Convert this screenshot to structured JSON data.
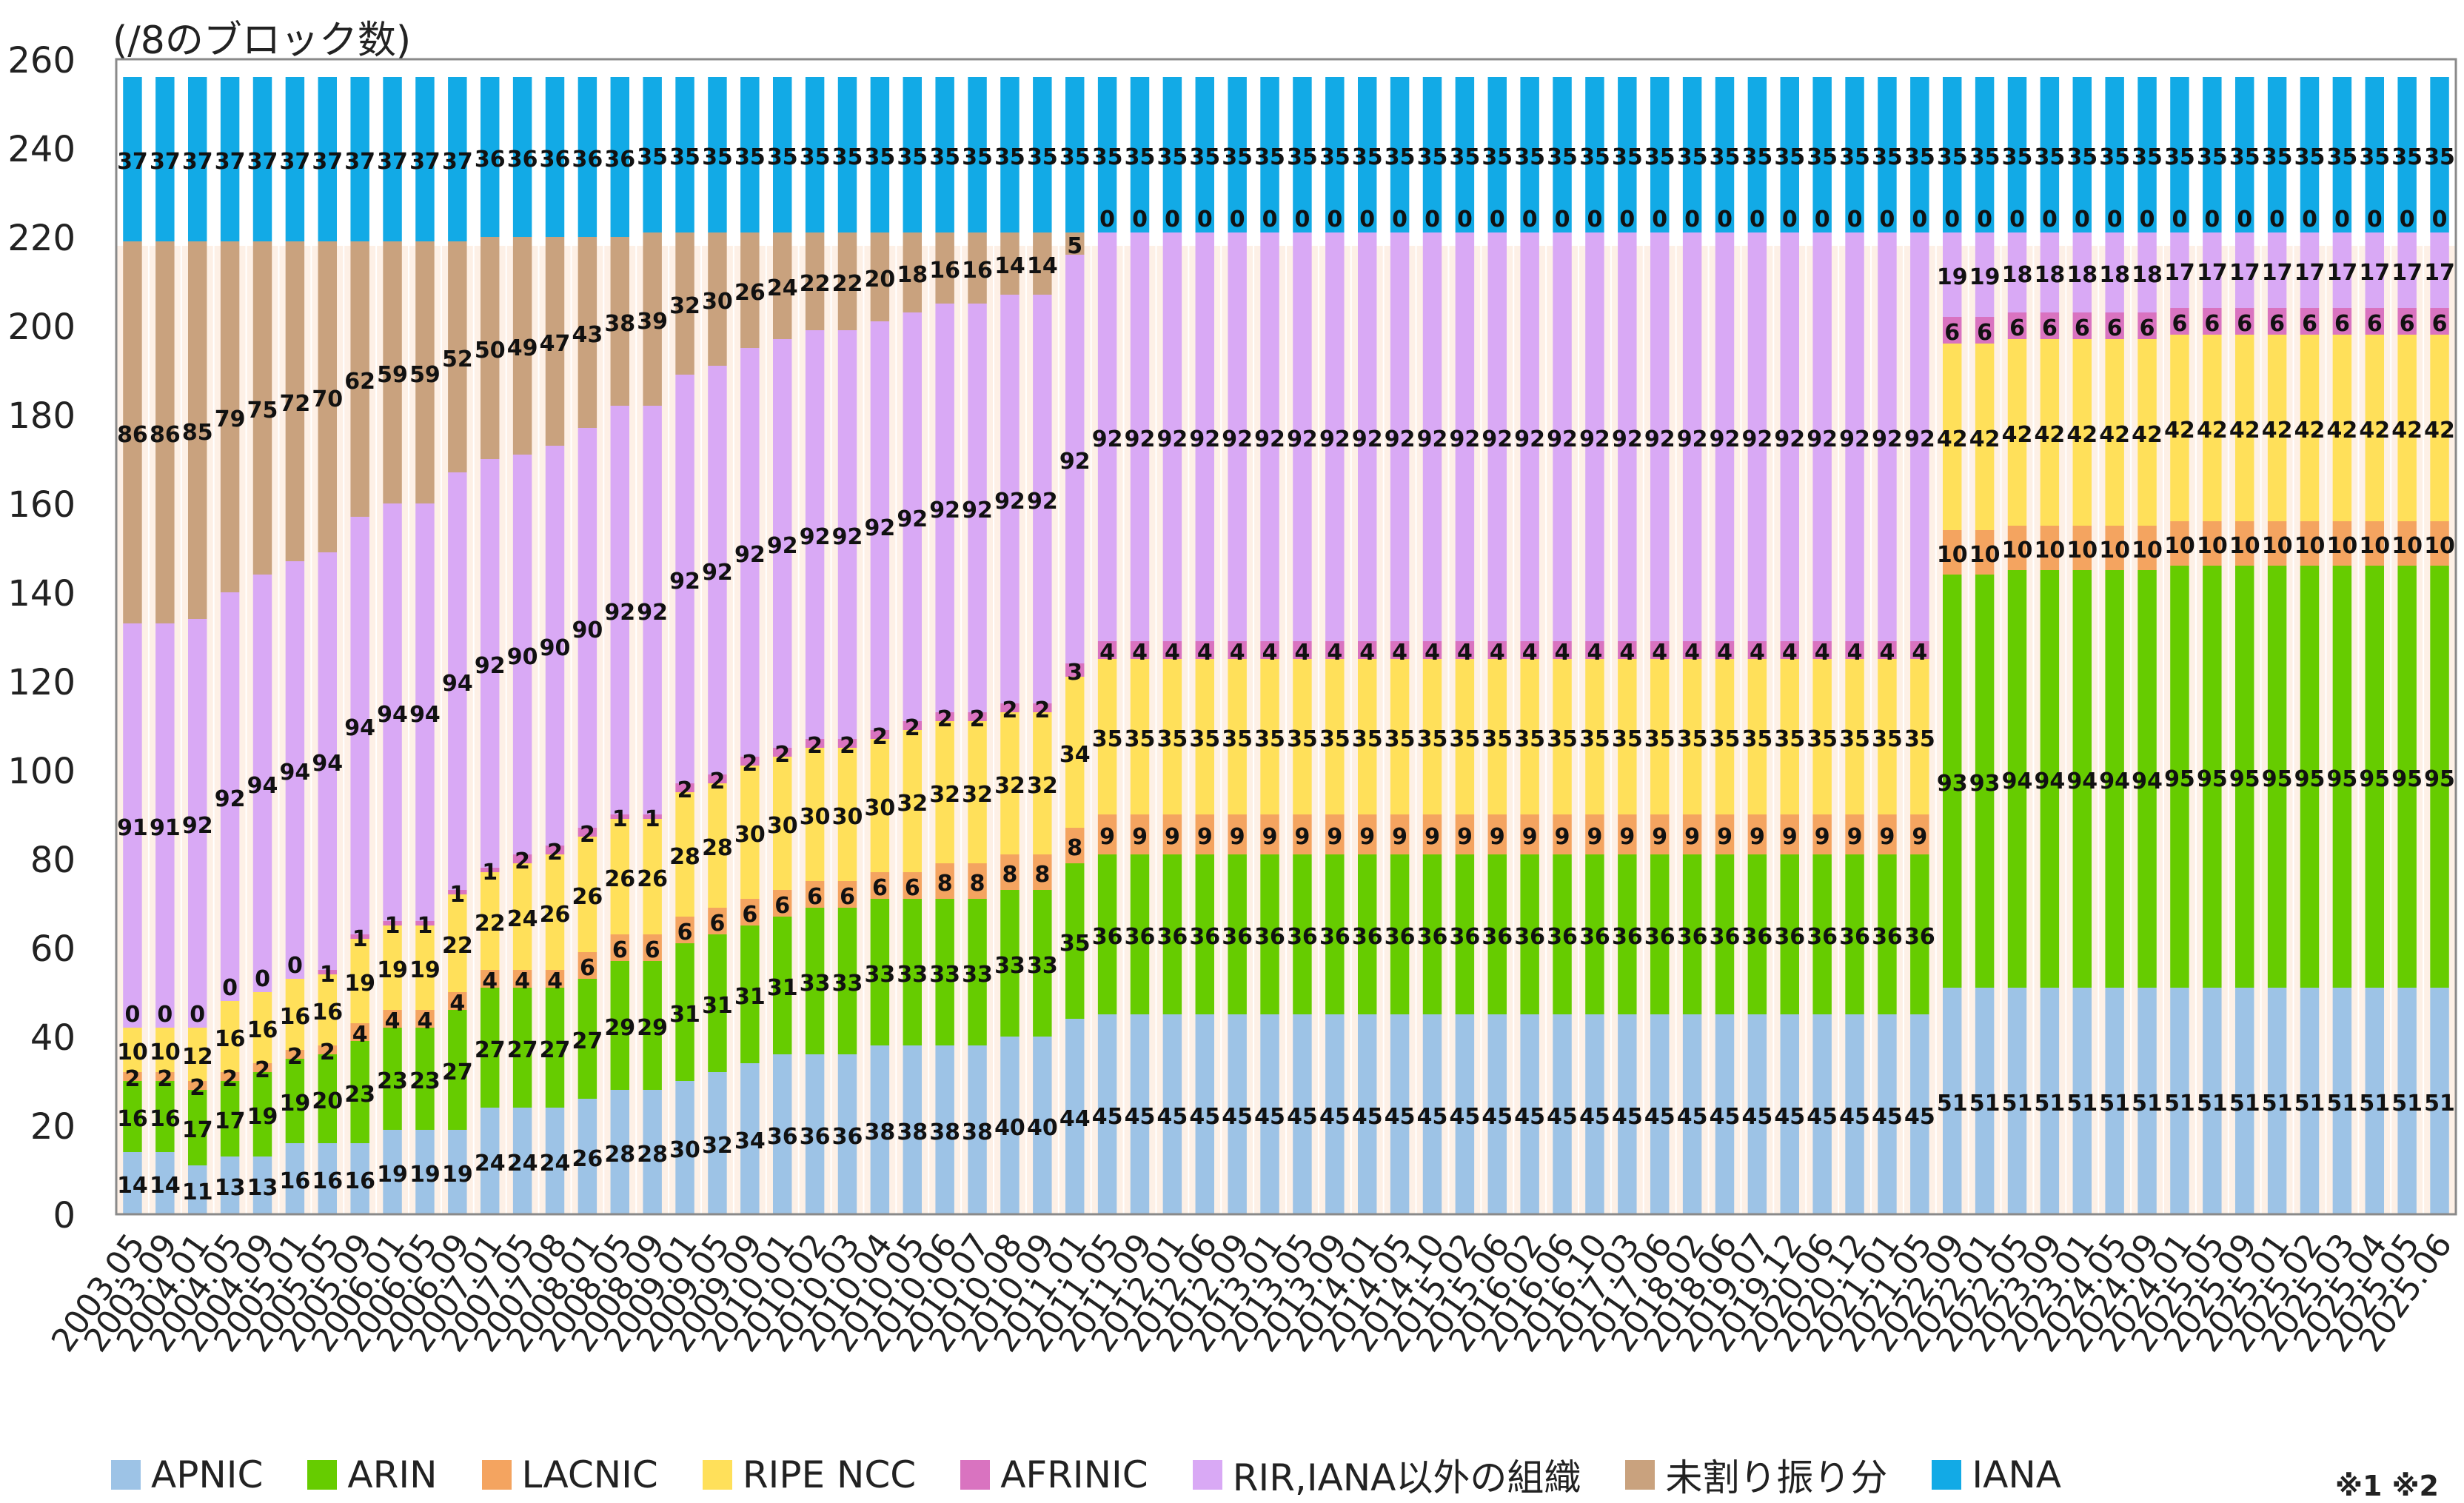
{
  "chart_data": {
    "type": "bar",
    "stacked": true,
    "ylabel": "(/8のブロック数)",
    "ylim": [
      0,
      260
    ],
    "yticks": [
      0,
      20,
      40,
      60,
      80,
      100,
      120,
      140,
      160,
      180,
      200,
      220,
      240,
      260
    ],
    "categories": [
      "2003.05",
      "2003.09",
      "2004.01",
      "2004.05",
      "2004.09",
      "2005.01",
      "2005.05",
      "2005.09",
      "2006.01",
      "2006.05",
      "2006.09",
      "2007.01",
      "2007.05",
      "2007.08",
      "2008.01",
      "2008.05",
      "2008.09",
      "2009.01",
      "2009.05",
      "2009.09",
      "2010.01",
      "2010.02",
      "2010.03",
      "2010.04",
      "2010.05",
      "2010.06",
      "2010.07",
      "2010.08",
      "2010.09",
      "2011.01",
      "2011.05",
      "2011.09",
      "2012.01",
      "2012.06",
      "2012.09",
      "2013.01",
      "2013.05",
      "2013.09",
      "2014.01",
      "2014.05",
      "2014.10",
      "2015.02",
      "2015.06",
      "2016.02",
      "2016.06",
      "2016.10",
      "2017.03",
      "2017.06",
      "2018.02",
      "2018.06",
      "2019.07",
      "2019.12",
      "2020.06",
      "2020.12",
      "2021.01",
      "2021.05",
      "2022.09",
      "2022.01",
      "2022.05",
      "2023.09",
      "2023.01",
      "2024.05",
      "2024.09",
      "2024.01",
      "2025.05",
      "2025.09",
      "2025.01",
      "2025.02",
      "2025.03",
      "2025.04",
      "2025.05",
      "2025.06"
    ],
    "series": [
      {
        "name": "APNIC",
        "color": "#9DC3E6",
        "values": [
          14,
          14,
          11,
          13,
          13,
          16,
          16,
          16,
          19,
          19,
          19,
          24,
          24,
          24,
          26,
          28,
          28,
          30,
          32,
          34,
          36,
          36,
          36,
          38,
          38,
          38,
          38,
          40,
          40,
          44,
          45,
          45,
          45,
          45,
          45,
          45,
          45,
          45,
          45,
          45,
          45,
          45,
          45,
          45,
          45,
          45,
          45,
          45,
          45,
          45,
          45,
          45,
          45,
          45,
          45,
          45,
          51,
          51,
          51,
          51,
          51,
          51,
          51,
          51,
          51,
          51,
          51,
          51,
          51,
          51,
          51,
          51
        ]
      },
      {
        "name": "ARIN",
        "color": "#66CC00",
        "values": [
          16,
          16,
          17,
          17,
          19,
          19,
          20,
          23,
          23,
          23,
          27,
          27,
          27,
          27,
          27,
          29,
          29,
          31,
          31,
          31,
          31,
          33,
          33,
          33,
          33,
          33,
          33,
          33,
          33,
          35,
          36,
          36,
          36,
          36,
          36,
          36,
          36,
          36,
          36,
          36,
          36,
          36,
          36,
          36,
          36,
          36,
          36,
          36,
          36,
          36,
          36,
          36,
          36,
          36,
          36,
          36,
          93,
          93,
          94,
          94,
          94,
          94,
          94,
          95,
          95,
          95,
          95,
          95,
          95,
          95,
          95,
          95
        ]
      },
      {
        "name": "LACNIC",
        "color": "#F4A460",
        "values": [
          2,
          2,
          2,
          2,
          2,
          2,
          2,
          4,
          4,
          4,
          4,
          4,
          4,
          4,
          6,
          6,
          6,
          6,
          6,
          6,
          6,
          6,
          6,
          6,
          6,
          8,
          8,
          8,
          8,
          8,
          9,
          9,
          9,
          9,
          9,
          9,
          9,
          9,
          9,
          9,
          9,
          9,
          9,
          9,
          9,
          9,
          9,
          9,
          9,
          9,
          9,
          9,
          9,
          9,
          9,
          9,
          10,
          10,
          10,
          10,
          10,
          10,
          10,
          10,
          10,
          10,
          10,
          10,
          10,
          10,
          10,
          10
        ]
      },
      {
        "name": "RIPE NCC",
        "color": "#FFE05A",
        "values": [
          10,
          10,
          12,
          16,
          16,
          16,
          16,
          19,
          19,
          19,
          22,
          22,
          24,
          26,
          26,
          26,
          26,
          28,
          28,
          30,
          30,
          30,
          30,
          30,
          32,
          32,
          32,
          32,
          32,
          34,
          35,
          35,
          35,
          35,
          35,
          35,
          35,
          35,
          35,
          35,
          35,
          35,
          35,
          35,
          35,
          35,
          35,
          35,
          35,
          35,
          35,
          35,
          35,
          35,
          35,
          35,
          42,
          42,
          42,
          42,
          42,
          42,
          42,
          42,
          42,
          42,
          42,
          42,
          42,
          42,
          42,
          42
        ]
      },
      {
        "name": "AFRINIC",
        "color": "#D973C0",
        "values": [
          0,
          0,
          0,
          0,
          0,
          0,
          1,
          1,
          1,
          1,
          1,
          1,
          2,
          2,
          2,
          1,
          1,
          2,
          2,
          2,
          2,
          2,
          2,
          2,
          2,
          2,
          2,
          2,
          2,
          3,
          4,
          4,
          4,
          4,
          4,
          4,
          4,
          4,
          4,
          4,
          4,
          4,
          4,
          4,
          4,
          4,
          4,
          4,
          4,
          4,
          4,
          4,
          4,
          4,
          4,
          4,
          6,
          6,
          6,
          6,
          6,
          6,
          6,
          6,
          6,
          6,
          6,
          6,
          6,
          6,
          6,
          6
        ]
      },
      {
        "name": "RIR,IANA以外の組織",
        "color": "#D9A9F5",
        "values": [
          91,
          91,
          92,
          92,
          94,
          94,
          94,
          94,
          94,
          94,
          94,
          92,
          90,
          90,
          90,
          92,
          92,
          92,
          92,
          92,
          92,
          92,
          92,
          92,
          92,
          92,
          92,
          92,
          92,
          92,
          92,
          92,
          92,
          92,
          92,
          92,
          92,
          92,
          92,
          92,
          92,
          92,
          92,
          92,
          92,
          92,
          92,
          92,
          92,
          92,
          92,
          92,
          92,
          92,
          92,
          92,
          19,
          19,
          18,
          18,
          18,
          18,
          18,
          17,
          17,
          17,
          17,
          17,
          17,
          17,
          17,
          17
        ]
      },
      {
        "name": "未割り振り分",
        "color": "#C9A27E",
        "values": [
          86,
          86,
          85,
          79,
          75,
          72,
          70,
          62,
          59,
          59,
          52,
          50,
          49,
          47,
          43,
          38,
          39,
          32,
          30,
          26,
          24,
          22,
          22,
          20,
          18,
          16,
          16,
          14,
          14,
          5,
          0,
          0,
          0,
          0,
          0,
          0,
          0,
          0,
          0,
          0,
          0,
          0,
          0,
          0,
          0,
          0,
          0,
          0,
          0,
          0,
          0,
          0,
          0,
          0,
          0,
          0,
          0,
          0,
          0,
          0,
          0,
          0,
          0,
          0,
          0,
          0,
          0,
          0,
          0,
          0,
          0,
          0
        ]
      },
      {
        "name": "IANA",
        "color": "#12AAE6",
        "values": [
          37,
          37,
          37,
          37,
          37,
          37,
          37,
          37,
          37,
          37,
          37,
          36,
          36,
          36,
          36,
          36,
          35,
          35,
          35,
          35,
          35,
          35,
          35,
          35,
          35,
          35,
          35,
          35,
          35,
          35,
          35,
          35,
          35,
          35,
          35,
          35,
          35,
          35,
          35,
          35,
          35,
          35,
          35,
          35,
          35,
          35,
          35,
          35,
          35,
          35,
          35,
          35,
          35,
          35,
          35,
          35,
          35,
          35,
          35,
          35,
          35,
          35,
          35,
          35,
          35,
          35,
          35,
          35,
          35,
          35,
          35,
          35
        ]
      }
    ],
    "grid": false,
    "legend_position": "bottom",
    "notes": "※1 ※2"
  }
}
